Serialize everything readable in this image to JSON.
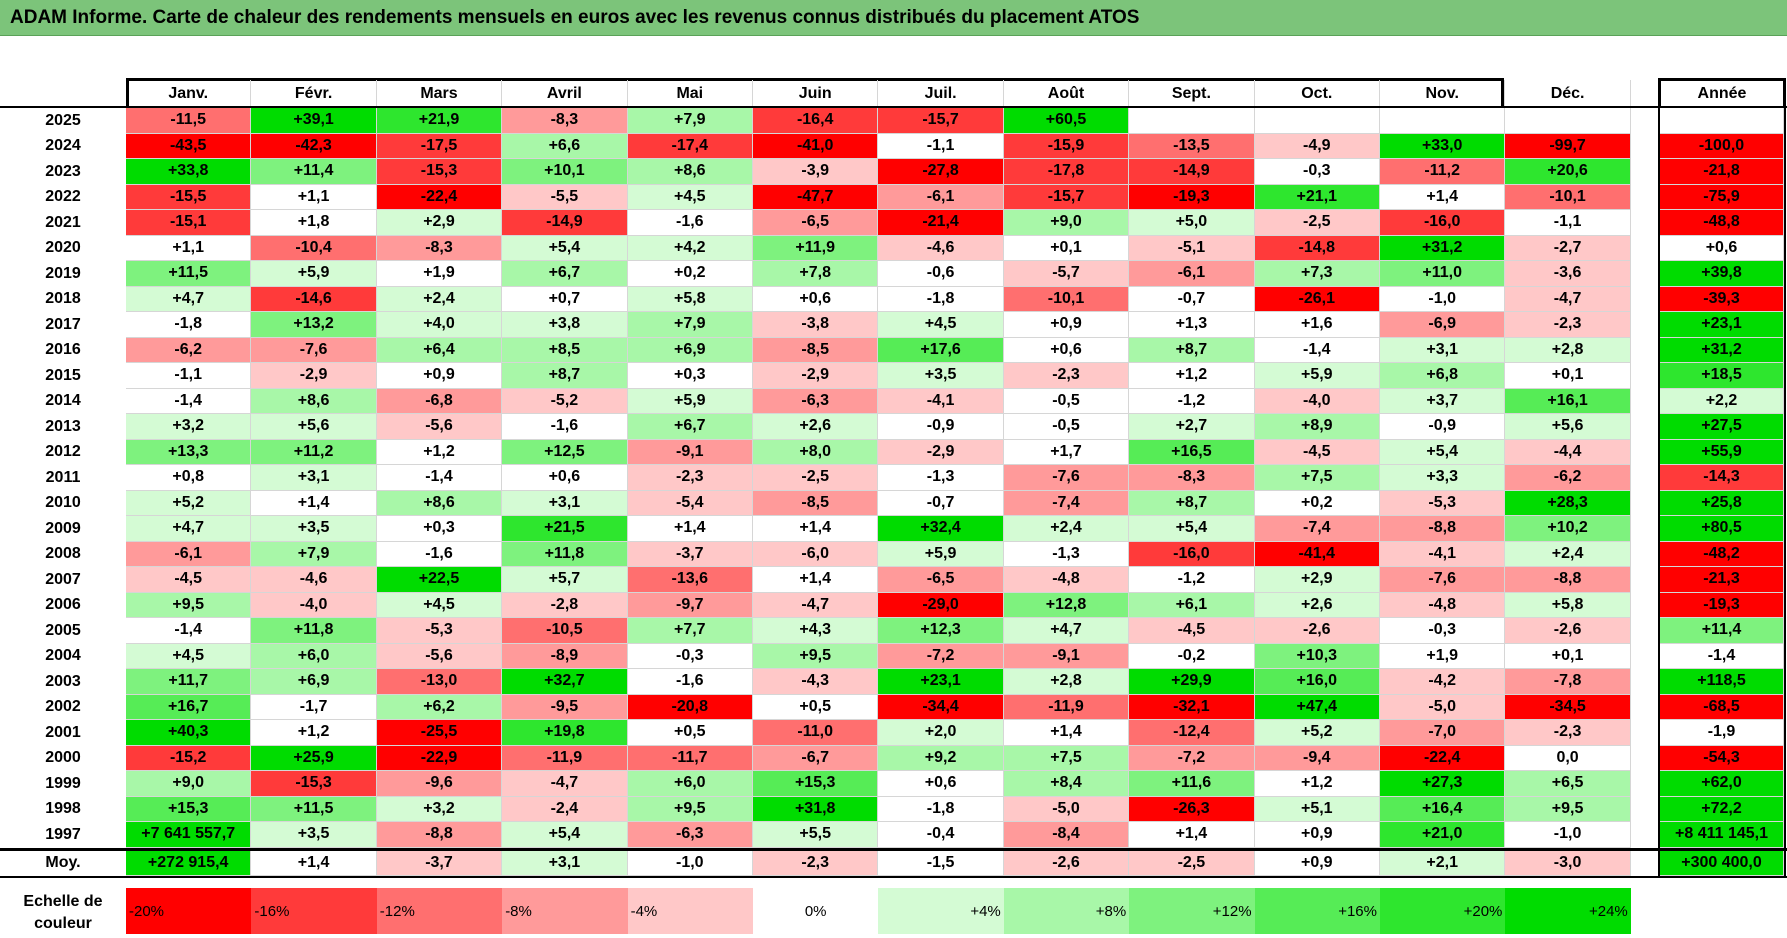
{
  "title": "ADAM Informe. Carte de chaleur des rendements mensuels en euros avec les revenus connus distribués du placement ATOS",
  "chart_data": {
    "type": "heatmap",
    "months": [
      "Janv.",
      "Févr.",
      "Mars",
      "Avril",
      "Mai",
      "Juin",
      "Juil.",
      "Août",
      "Sept.",
      "Oct.",
      "Nov.",
      "Déc."
    ],
    "year_header": "Année",
    "rows": [
      {
        "year": "2025",
        "values": [
          "-11,5",
          "+39,1",
          "+21,9",
          "-8,3",
          "+7,9",
          "-16,4",
          "-15,7",
          "+60,5",
          "",
          "",
          "",
          ""
        ],
        "total": ""
      },
      {
        "year": "2024",
        "values": [
          "-43,5",
          "-42,3",
          "-17,5",
          "+6,6",
          "-17,4",
          "-41,0",
          "-1,1",
          "-15,9",
          "-13,5",
          "-4,9",
          "+33,0",
          "-99,7"
        ],
        "total": "-100,0"
      },
      {
        "year": "2023",
        "values": [
          "+33,8",
          "+11,4",
          "-15,3",
          "+10,1",
          "+8,6",
          "-3,9",
          "-27,8",
          "-17,8",
          "-14,9",
          "-0,3",
          "-11,2",
          "+20,6"
        ],
        "total": "-21,8"
      },
      {
        "year": "2022",
        "values": [
          "-15,5",
          "+1,1",
          "-22,4",
          "-5,5",
          "+4,5",
          "-47,7",
          "-6,1",
          "-15,7",
          "-19,3",
          "+21,1",
          "+1,4",
          "-10,1"
        ],
        "total": "-75,9"
      },
      {
        "year": "2021",
        "values": [
          "-15,1",
          "+1,8",
          "+2,9",
          "-14,9",
          "-1,6",
          "-6,5",
          "-21,4",
          "+9,0",
          "+5,0",
          "-2,5",
          "-16,0",
          "-1,1"
        ],
        "total": "-48,8"
      },
      {
        "year": "2020",
        "values": [
          "+1,1",
          "-10,4",
          "-8,3",
          "+5,4",
          "+4,2",
          "+11,9",
          "-4,6",
          "+0,1",
          "-5,1",
          "-14,8",
          "+31,2",
          "-2,7"
        ],
        "total": "+0,6"
      },
      {
        "year": "2019",
        "values": [
          "+11,5",
          "+5,9",
          "+1,9",
          "+6,7",
          "+0,2",
          "+7,8",
          "-0,6",
          "-5,7",
          "-6,1",
          "+7,3",
          "+11,0",
          "-3,6"
        ],
        "total": "+39,8"
      },
      {
        "year": "2018",
        "values": [
          "+4,7",
          "-14,6",
          "+2,4",
          "+0,7",
          "+5,8",
          "+0,6",
          "-1,8",
          "-10,1",
          "-0,7",
          "-26,1",
          "-1,0",
          "-4,7"
        ],
        "total": "-39,3"
      },
      {
        "year": "2017",
        "values": [
          "-1,8",
          "+13,2",
          "+4,0",
          "+3,8",
          "+7,9",
          "-3,8",
          "+4,5",
          "+0,9",
          "+1,3",
          "+1,6",
          "-6,9",
          "-2,3"
        ],
        "total": "+23,1"
      },
      {
        "year": "2016",
        "values": [
          "-6,2",
          "-7,6",
          "+6,4",
          "+8,5",
          "+6,9",
          "-8,5",
          "+17,6",
          "+0,6",
          "+8,7",
          "-1,4",
          "+3,1",
          "+2,8"
        ],
        "total": "+31,2"
      },
      {
        "year": "2015",
        "values": [
          "-1,1",
          "-2,9",
          "+0,9",
          "+8,7",
          "+0,3",
          "-2,9",
          "+3,5",
          "-2,3",
          "+1,2",
          "+5,9",
          "+6,8",
          "+0,1"
        ],
        "total": "+18,5"
      },
      {
        "year": "2014",
        "values": [
          "-1,4",
          "+8,6",
          "-6,8",
          "-5,2",
          "+5,9",
          "-6,3",
          "-4,1",
          "-0,5",
          "-1,2",
          "-4,0",
          "+3,7",
          "+16,1"
        ],
        "total": "+2,2"
      },
      {
        "year": "2013",
        "values": [
          "+3,2",
          "+5,6",
          "-5,6",
          "-1,6",
          "+6,7",
          "+2,6",
          "-0,9",
          "-0,5",
          "+2,7",
          "+8,9",
          "-0,9",
          "+5,6"
        ],
        "total": "+27,5"
      },
      {
        "year": "2012",
        "values": [
          "+13,3",
          "+11,2",
          "+1,2",
          "+12,5",
          "-9,1",
          "+8,0",
          "-2,9",
          "+1,7",
          "+16,5",
          "-4,5",
          "+5,4",
          "-4,4"
        ],
        "total": "+55,9"
      },
      {
        "year": "2011",
        "values": [
          "+0,8",
          "+3,1",
          "-1,4",
          "+0,6",
          "-2,3",
          "-2,5",
          "-1,3",
          "-7,6",
          "-8,3",
          "+7,5",
          "+3,3",
          "-6,2"
        ],
        "total": "-14,3"
      },
      {
        "year": "2010",
        "values": [
          "+5,2",
          "+1,4",
          "+8,6",
          "+3,1",
          "-5,4",
          "-8,5",
          "-0,7",
          "-7,4",
          "+8,7",
          "+0,2",
          "-5,3",
          "+28,3"
        ],
        "total": "+25,8"
      },
      {
        "year": "2009",
        "values": [
          "+4,7",
          "+3,5",
          "+0,3",
          "+21,5",
          "+1,4",
          "+1,4",
          "+32,4",
          "+2,4",
          "+5,4",
          "-7,4",
          "-8,8",
          "+10,2"
        ],
        "total": "+80,5"
      },
      {
        "year": "2008",
        "values": [
          "-6,1",
          "+7,9",
          "-1,6",
          "+11,8",
          "-3,7",
          "-6,0",
          "+5,9",
          "-1,3",
          "-16,0",
          "-41,4",
          "-4,1",
          "+2,4"
        ],
        "total": "-48,2"
      },
      {
        "year": "2007",
        "values": [
          "-4,5",
          "-4,6",
          "+22,5",
          "+5,7",
          "-13,6",
          "+1,4",
          "-6,5",
          "-4,8",
          "-1,2",
          "+2,9",
          "-7,6",
          "-8,8"
        ],
        "total": "-21,3"
      },
      {
        "year": "2006",
        "values": [
          "+9,5",
          "-4,0",
          "+4,5",
          "-2,8",
          "-9,7",
          "-4,7",
          "-29,0",
          "+12,8",
          "+6,1",
          "+2,6",
          "-4,8",
          "+5,8"
        ],
        "total": "-19,3"
      },
      {
        "year": "2005",
        "values": [
          "-1,4",
          "+11,8",
          "-5,3",
          "-10,5",
          "+7,7",
          "+4,3",
          "+12,3",
          "+4,7",
          "-4,5",
          "-2,6",
          "-0,3",
          "-2,6"
        ],
        "total": "+11,4"
      },
      {
        "year": "2004",
        "values": [
          "+4,5",
          "+6,0",
          "-5,6",
          "-8,9",
          "-0,3",
          "+9,5",
          "-7,2",
          "-9,1",
          "-0,2",
          "+10,3",
          "+1,9",
          "+0,1"
        ],
        "total": "-1,4"
      },
      {
        "year": "2003",
        "values": [
          "+11,7",
          "+6,9",
          "-13,0",
          "+32,7",
          "-1,6",
          "-4,3",
          "+23,1",
          "+2,8",
          "+29,9",
          "+16,0",
          "-4,2",
          "-7,8"
        ],
        "total": "+118,5"
      },
      {
        "year": "2002",
        "values": [
          "+16,7",
          "-1,7",
          "+6,2",
          "-9,5",
          "-20,8",
          "+0,5",
          "-34,4",
          "-11,9",
          "-32,1",
          "+47,4",
          "-5,0",
          "-34,5"
        ],
        "total": "-68,5"
      },
      {
        "year": "2001",
        "values": [
          "+40,3",
          "+1,2",
          "-25,5",
          "+19,8",
          "+0,5",
          "-11,0",
          "+2,0",
          "+1,4",
          "-12,4",
          "+5,2",
          "-7,0",
          "-2,3"
        ],
        "total": "-1,9"
      },
      {
        "year": "2000",
        "values": [
          "-15,2",
          "+25,9",
          "-22,9",
          "-11,9",
          "-11,7",
          "-6,7",
          "+9,2",
          "+7,5",
          "-7,2",
          "-9,4",
          "-22,4",
          "0,0"
        ],
        "total": "-54,3"
      },
      {
        "year": "1999",
        "values": [
          "+9,0",
          "-15,3",
          "-9,6",
          "-4,7",
          "+6,0",
          "+15,3",
          "+0,6",
          "+8,4",
          "+11,6",
          "+1,2",
          "+27,3",
          "+6,5"
        ],
        "total": "+62,0"
      },
      {
        "year": "1998",
        "values": [
          "+15,3",
          "+11,5",
          "+3,2",
          "-2,4",
          "+9,5",
          "+31,8",
          "-1,8",
          "-5,0",
          "-26,3",
          "+5,1",
          "+16,4",
          "+9,5"
        ],
        "total": "+72,2"
      },
      {
        "year": "1997",
        "values": [
          "+7 641 557,7",
          "+3,5",
          "-8,8",
          "+5,4",
          "-6,3",
          "+5,5",
          "-0,4",
          "-8,4",
          "+1,4",
          "+0,9",
          "+21,0",
          "-1,0"
        ],
        "total": "+8 411 145,1"
      }
    ],
    "average": {
      "label": "Moy.",
      "values": [
        "+272 915,4",
        "+1,4",
        "-3,7",
        "+3,1",
        "-1,0",
        "-2,3",
        "-1,5",
        "-2,6",
        "-2,5",
        "+0,9",
        "+2,1",
        "-3,0"
      ],
      "total": "+300 400,0"
    },
    "legend": {
      "label": "Echelle de couleur",
      "steps": [
        {
          "label": "-20%",
          "color": "#ff0000"
        },
        {
          "label": "-16%",
          "color": "#ff3a3a"
        },
        {
          "label": "-12%",
          "color": "#ff6f6f"
        },
        {
          "label": "-8%",
          "color": "#ff9a9a"
        },
        {
          "label": "-4%",
          "color": "#ffc8c8"
        },
        {
          "label": "0%",
          "color": "#ffffff"
        },
        {
          "label": "+4%",
          "color": "#d4fbd4"
        },
        {
          "label": "+8%",
          "color": "#a8f7a8"
        },
        {
          "label": "+12%",
          "color": "#7ef27e"
        },
        {
          "label": "+16%",
          "color": "#56ec56"
        },
        {
          "label": "+20%",
          "color": "#2ee62e"
        },
        {
          "label": "+24%",
          "color": "#00dc00"
        }
      ]
    }
  }
}
